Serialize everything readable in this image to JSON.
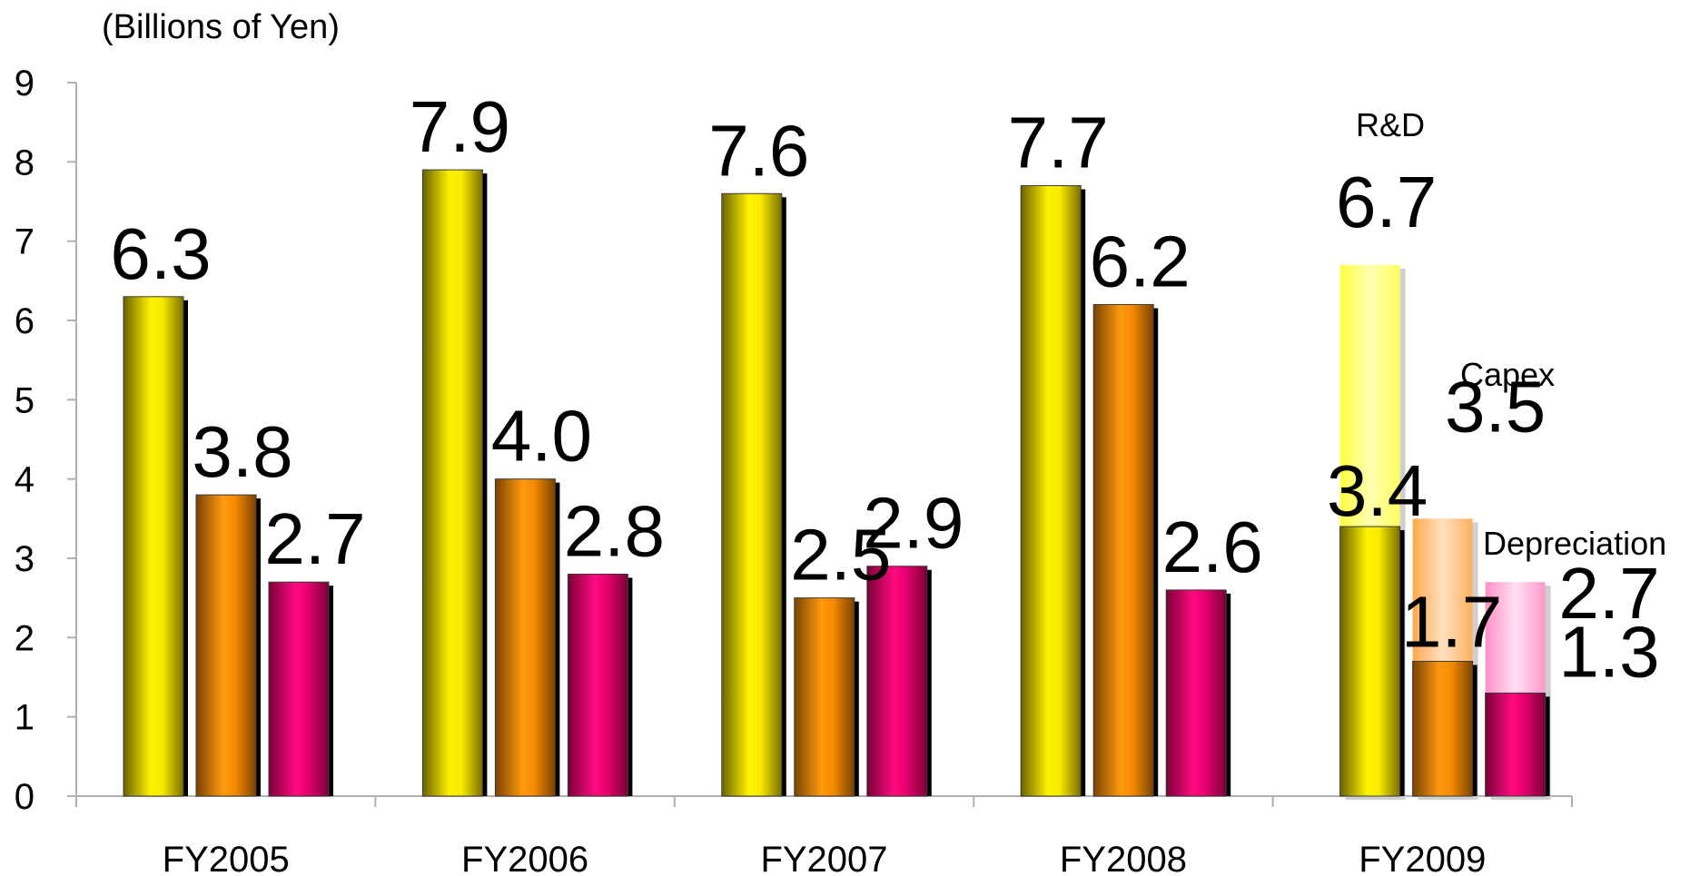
{
  "chart_data": {
    "type": "bar",
    "unit_label": "(Billions of Yen)",
    "categories": [
      "FY2005",
      "FY2006",
      "FY2007",
      "FY2008",
      "FY2009"
    ],
    "ylim": [
      0,
      9
    ],
    "yticks": [
      "0",
      "1",
      "2",
      "3",
      "4",
      "5",
      "6",
      "7",
      "8",
      "9"
    ],
    "grid": false,
    "colors": {
      "rd": "#f2e600",
      "capex": "#f58a00",
      "depreciation": "#e6006e",
      "rd_plan": "#ffff80",
      "capex_plan": "#ffc890",
      "depreciation_plan": "#ffb0d8"
    },
    "series": [
      {
        "name": "R&D",
        "values": [
          6.3,
          7.9,
          7.6,
          7.7,
          3.4
        ],
        "labels": [
          "6.3",
          "7.9",
          "7.6",
          "7.7",
          "3.4"
        ]
      },
      {
        "name": "Capex",
        "values": [
          3.8,
          4.0,
          2.5,
          6.2,
          1.7
        ],
        "labels": [
          "3.8",
          "4.0",
          "2.5",
          "6.2",
          "1.7"
        ]
      },
      {
        "name": "Depreciation",
        "values": [
          2.7,
          2.8,
          2.9,
          2.6,
          1.3
        ],
        "labels": [
          "2.7",
          "2.8",
          "2.9",
          "2.6",
          "1.3"
        ]
      }
    ],
    "fy2009_plan": [
      {
        "series": "R&D",
        "value": 6.7,
        "label": "6.7"
      },
      {
        "series": "Capex",
        "value": 3.5,
        "label": "3.5"
      },
      {
        "series": "Depreciation",
        "value": 2.7,
        "label": "2.7"
      }
    ]
  }
}
